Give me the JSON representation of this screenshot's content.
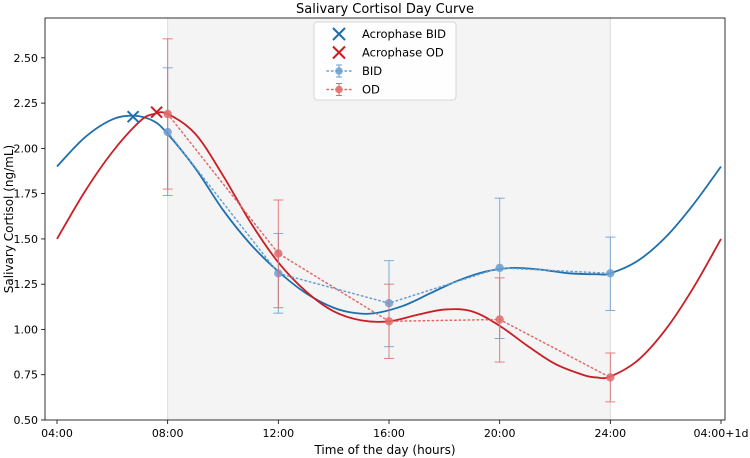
{
  "chart_data": {
    "type": "line",
    "title": "Salivary Cortisol Day Curve",
    "xlabel": "Time of the day (hours)",
    "ylabel": "Salivary Cortisol (ng/mL)",
    "x_ticks": [
      {
        "value": 4,
        "label": "04:00"
      },
      {
        "value": 8,
        "label": "08:00"
      },
      {
        "value": 12,
        "label": "12:00"
      },
      {
        "value": 16,
        "label": "16:00"
      },
      {
        "value": 20,
        "label": "20:00"
      },
      {
        "value": 24,
        "label": "24:00"
      },
      {
        "value": 28,
        "label": "04:00+1d"
      }
    ],
    "xlim": [
      3.6,
      28.1
    ],
    "ylim": [
      0.5,
      2.72
    ],
    "y_ticks": [
      0.5,
      0.75,
      1.0,
      1.25,
      1.5,
      1.75,
      2.0,
      2.25,
      2.5
    ],
    "y_tick_labels": [
      "0.50",
      "0.75",
      "1.00",
      "1.25",
      "1.50",
      "1.75",
      "2.00",
      "2.25",
      "2.50"
    ],
    "shaded_x_range": [
      8,
      24
    ],
    "grid": false,
    "legend_position": "top-center",
    "legend": [
      {
        "label": "Acrophase BID",
        "marker": "x",
        "color": "#1f6fad"
      },
      {
        "label": "Acrophase OD",
        "marker": "x",
        "color": "#c81e24"
      },
      {
        "label": "BID",
        "marker": "o-dotted",
        "color": "#6a9fd0"
      },
      {
        "label": "OD",
        "marker": "o-dotted",
        "color": "#e06a6a"
      }
    ],
    "series": [
      {
        "name": "BID",
        "color": "#6a9fd0",
        "x": [
          8,
          12,
          16,
          20,
          24
        ],
        "y": [
          2.09,
          1.31,
          1.145,
          1.34,
          1.31
        ],
        "err_low": [
          1.74,
          1.09,
          0.905,
          0.95,
          1.105
        ],
        "err_high": [
          2.445,
          1.53,
          1.38,
          1.725,
          1.51
        ]
      },
      {
        "name": "OD",
        "color": "#e06a6a",
        "x": [
          8,
          12,
          16,
          20,
          24
        ],
        "y": [
          2.19,
          1.42,
          1.045,
          1.055,
          0.735
        ],
        "err_low": [
          1.775,
          1.12,
          0.84,
          0.82,
          0.6
        ],
        "err_high": [
          2.605,
          1.715,
          1.25,
          1.285,
          0.87
        ]
      }
    ],
    "fit_curves": [
      {
        "name": "BID fit",
        "color": "#1f6fad",
        "x": [
          4,
          5,
          6,
          6.8,
          7.5,
          8,
          9,
          10,
          11,
          12,
          13,
          14,
          14.8,
          15.5,
          16.5,
          17.5,
          18.5,
          19.5,
          20.5,
          21.5,
          22.5,
          23.5,
          24,
          25,
          26,
          27,
          28
        ],
        "y": [
          1.9,
          2.06,
          2.16,
          2.18,
          2.15,
          2.08,
          1.89,
          1.66,
          1.47,
          1.32,
          1.2,
          1.12,
          1.09,
          1.09,
          1.13,
          1.2,
          1.27,
          1.32,
          1.34,
          1.33,
          1.31,
          1.305,
          1.31,
          1.38,
          1.51,
          1.69,
          1.9
        ]
      },
      {
        "name": "OD fit",
        "color": "#c81e24",
        "x": [
          4,
          5,
          6,
          7,
          7.5,
          8,
          9,
          10,
          11,
          12,
          13,
          14,
          15,
          16,
          17,
          18,
          19,
          20,
          21,
          22,
          23,
          23.5,
          24,
          25,
          26,
          27,
          28
        ],
        "y": [
          1.5,
          1.76,
          1.98,
          2.15,
          2.19,
          2.19,
          2.08,
          1.85,
          1.59,
          1.37,
          1.21,
          1.1,
          1.05,
          1.045,
          1.08,
          1.11,
          1.1,
          1.02,
          0.91,
          0.81,
          0.75,
          0.735,
          0.74,
          0.83,
          1.0,
          1.23,
          1.5
        ]
      }
    ],
    "acrophase_markers": [
      {
        "name": "Acrophase BID",
        "color": "#1f6fad",
        "x": 6.75,
        "y": 2.175
      },
      {
        "name": "Acrophase OD",
        "color": "#c81e24",
        "x": 7.6,
        "y": 2.2
      }
    ]
  }
}
